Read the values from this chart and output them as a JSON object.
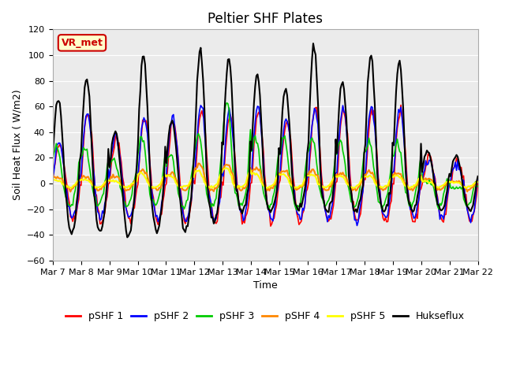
{
  "title": "Peltier SHF Plates",
  "xlabel": "Time",
  "ylabel": "Soil Heat Flux ( W/m2)",
  "ylim": [
    -60,
    120
  ],
  "series_colors": {
    "pSHF 1": "#ff0000",
    "pSHF 2": "#0000ff",
    "pSHF 3": "#00cc00",
    "pSHF 4": "#ff8800",
    "pSHF 5": "#ffff00",
    "Hukseflux": "#000000"
  },
  "xtick_labels": [
    "Mar 7",
    "Mar 8",
    "Mar 9",
    "Mar 10",
    "Mar 11",
    "Mar 12",
    "Mar 13",
    "Mar 14",
    "Mar 15",
    "Mar 16",
    "Mar 17",
    "Mar 18",
    "Mar 19",
    "Mar 20",
    "Mar 21",
    "Mar 22"
  ],
  "annotation_text": "VR_met",
  "annotation_color": "#cc0000",
  "annotation_bg": "#ffffcc",
  "plot_bg": "#ebebeb",
  "title_fontsize": 12,
  "axis_fontsize": 9,
  "tick_fontsize": 8,
  "legend_fontsize": 9,
  "yticks": [
    -60,
    -40,
    -20,
    0,
    20,
    40,
    60,
    80,
    100,
    120
  ]
}
